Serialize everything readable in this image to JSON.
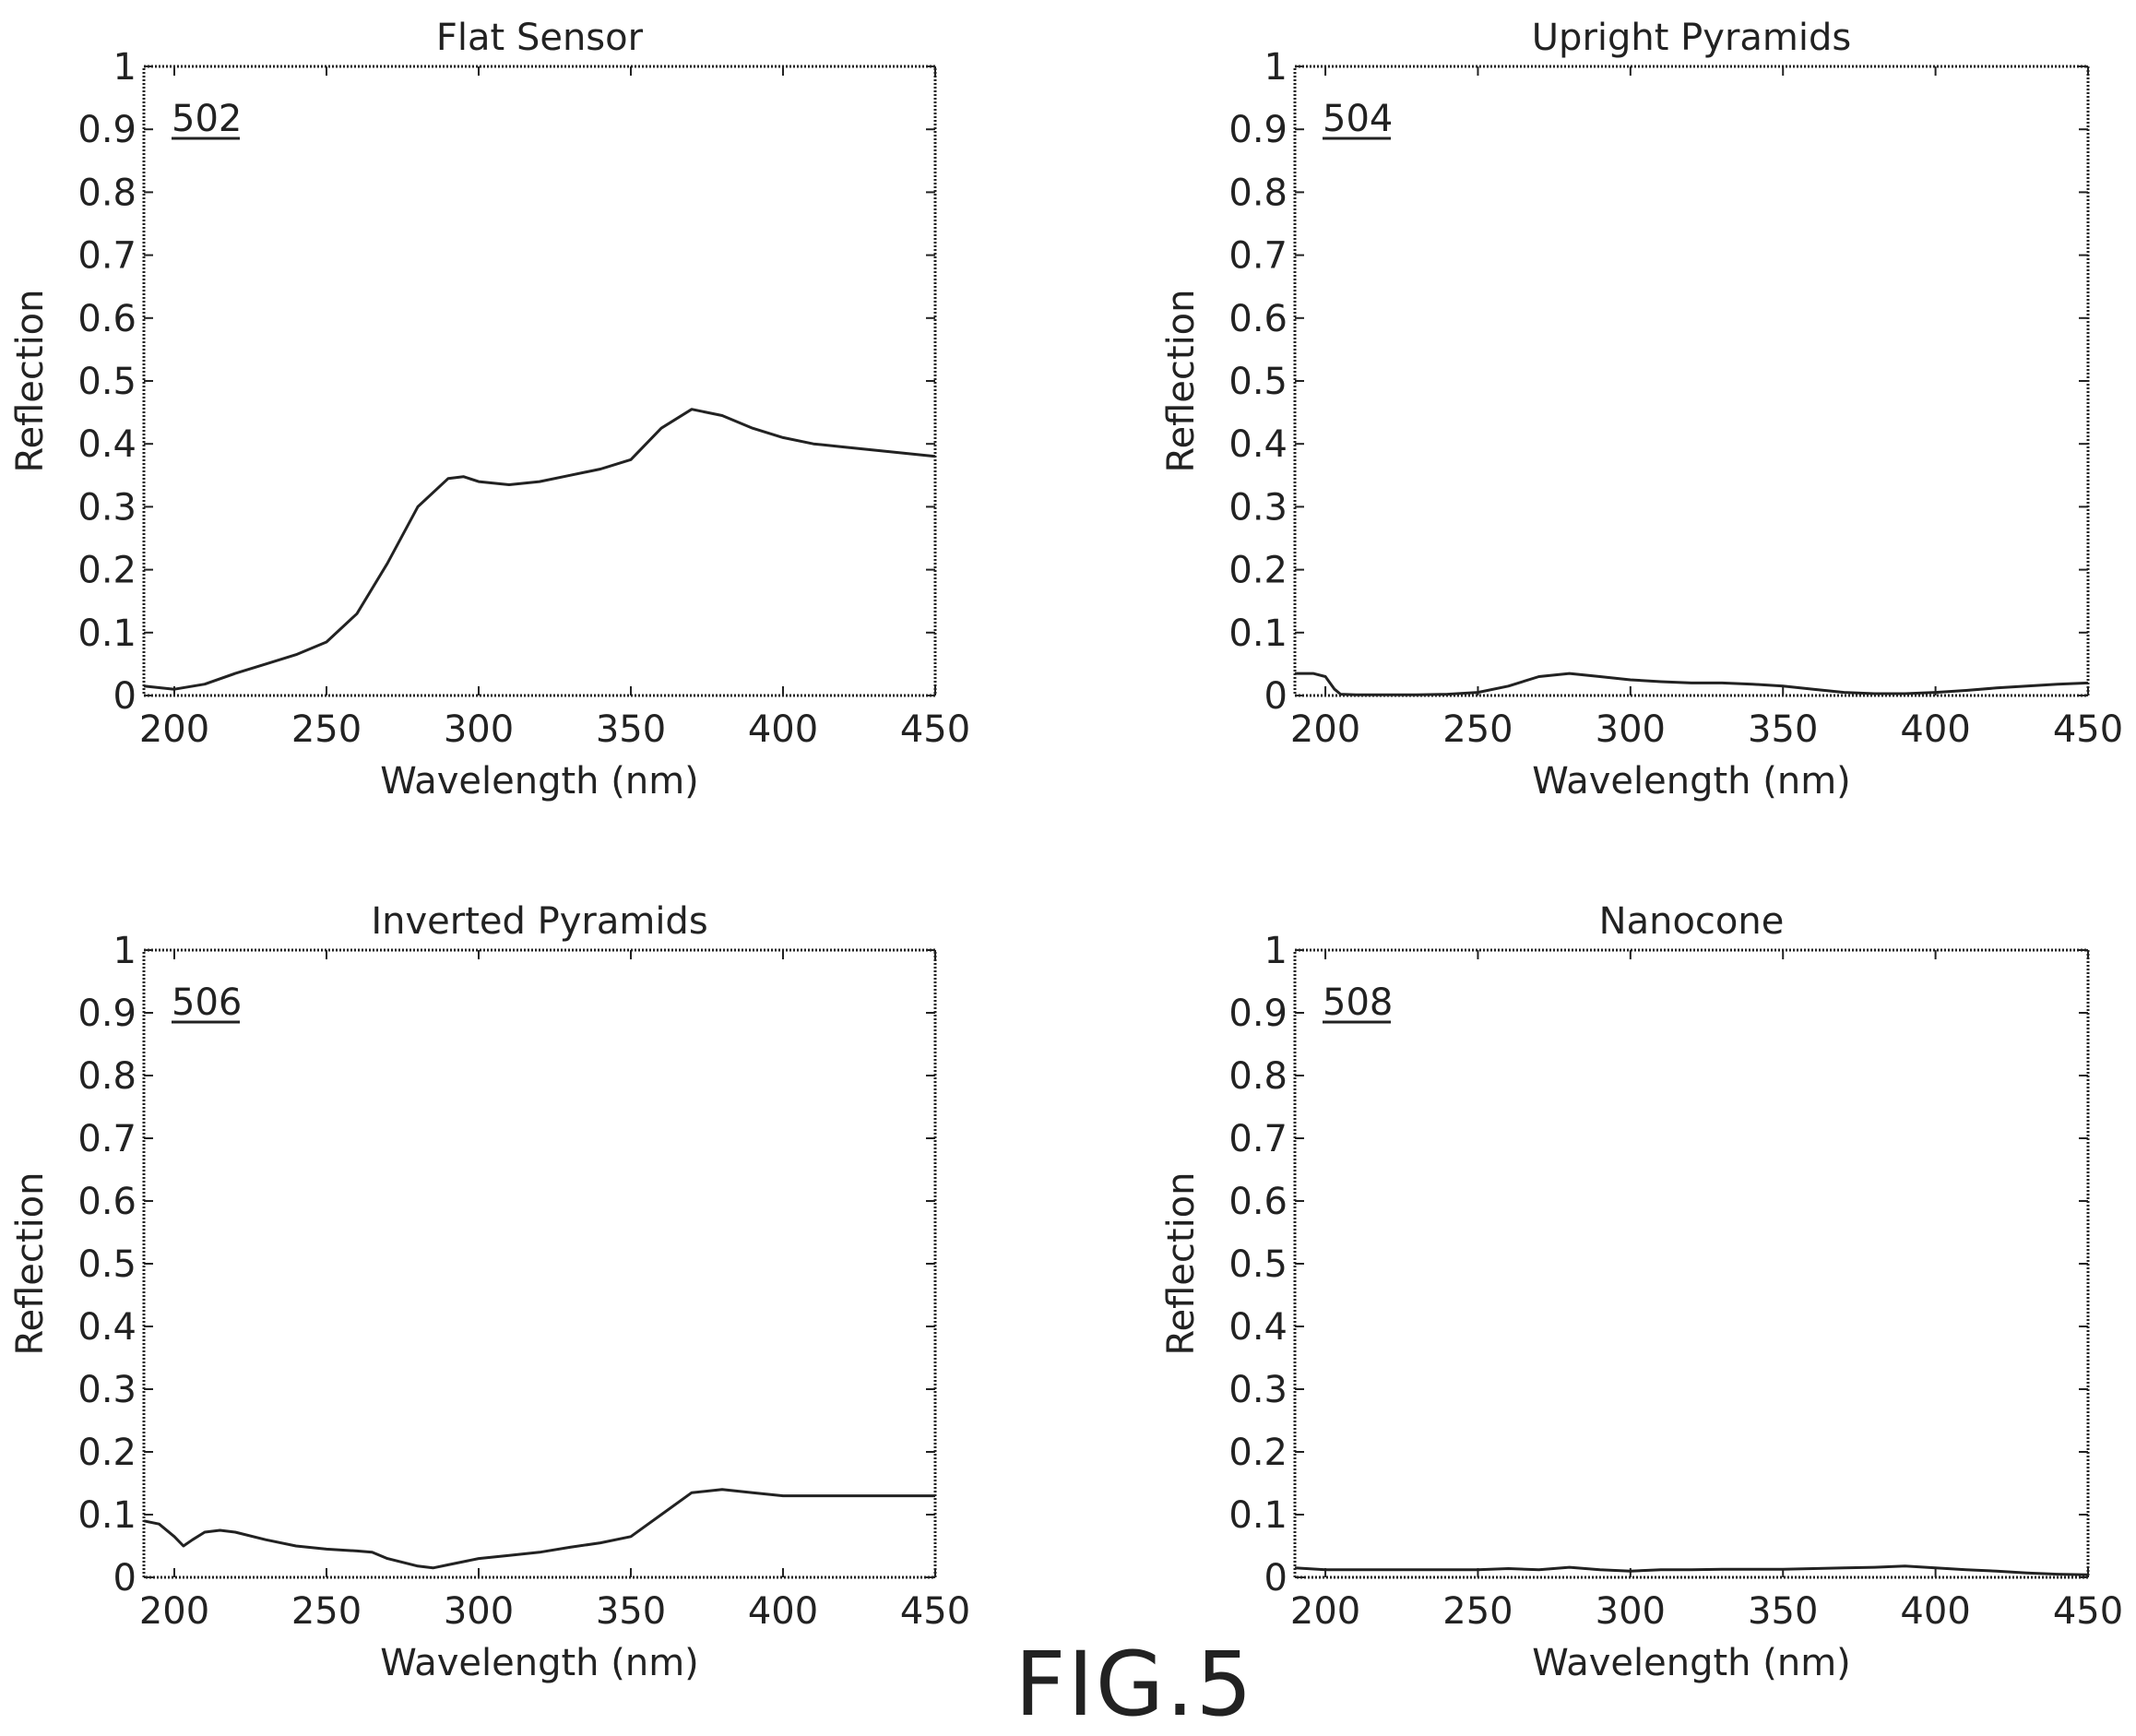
{
  "figure": {
    "label": "FIG.5"
  },
  "chart_data": [
    {
      "type": "line",
      "title": "Flat Sensor",
      "ref_label": "502",
      "xlabel": "Wavelength (nm)",
      "ylabel": "Reflection",
      "xlim": [
        190,
        450
      ],
      "ylim": [
        0,
        1
      ],
      "xticks": [
        200,
        250,
        300,
        350,
        400,
        450
      ],
      "yticks": [
        0,
        0.1,
        0.2,
        0.3,
        0.4,
        0.5,
        0.6,
        0.7,
        0.8,
        0.9,
        1
      ],
      "ytick_labels": [
        "0",
        "0.1",
        "0.2",
        "0.3",
        "0.4",
        "0.5",
        "0.6",
        "0.7",
        "0.8",
        "0.9",
        "1"
      ],
      "grid": false,
      "series": [
        {
          "x": [
            190,
            200,
            210,
            220,
            230,
            240,
            250,
            260,
            270,
            280,
            290,
            295,
            300,
            310,
            320,
            330,
            340,
            350,
            360,
            370,
            380,
            390,
            400,
            410,
            420,
            430,
            440,
            450
          ],
          "values": [
            0.015,
            0.01,
            0.018,
            0.035,
            0.05,
            0.065,
            0.085,
            0.13,
            0.21,
            0.3,
            0.345,
            0.348,
            0.34,
            0.335,
            0.34,
            0.35,
            0.36,
            0.375,
            0.425,
            0.455,
            0.445,
            0.425,
            0.41,
            0.4,
            0.395,
            0.39,
            0.385,
            0.38
          ]
        }
      ]
    },
    {
      "type": "line",
      "title": "Upright Pyramids",
      "ref_label": "504",
      "xlabel": "Wavelength (nm)",
      "ylabel": "Reflection",
      "xlim": [
        190,
        450
      ],
      "ylim": [
        0,
        1
      ],
      "xticks": [
        200,
        250,
        300,
        350,
        400,
        450
      ],
      "yticks": [
        0,
        0.1,
        0.2,
        0.3,
        0.4,
        0.5,
        0.6,
        0.7,
        0.8,
        0.9,
        1
      ],
      "ytick_labels": [
        "0",
        "0.1",
        "0.2",
        "0.3",
        "0.4",
        "0.5",
        "0.6",
        "0.7",
        "0.8",
        "0.9",
        "1"
      ],
      "grid": false,
      "series": [
        {
          "x": [
            190,
            196,
            200,
            203,
            205,
            210,
            220,
            230,
            240,
            250,
            260,
            270,
            280,
            290,
            300,
            310,
            320,
            330,
            340,
            350,
            360,
            370,
            380,
            390,
            400,
            410,
            420,
            430,
            440,
            450
          ],
          "values": [
            0.035,
            0.035,
            0.03,
            0.01,
            0.002,
            0.001,
            0.001,
            0.001,
            0.002,
            0.005,
            0.015,
            0.03,
            0.035,
            0.03,
            0.025,
            0.022,
            0.02,
            0.02,
            0.018,
            0.015,
            0.01,
            0.005,
            0.003,
            0.003,
            0.005,
            0.008,
            0.012,
            0.015,
            0.018,
            0.02
          ]
        }
      ]
    },
    {
      "type": "line",
      "title": "Inverted Pyramids",
      "ref_label": "506",
      "xlabel": "Wavelength (nm)",
      "ylabel": "Reflection",
      "xlim": [
        190,
        450
      ],
      "ylim": [
        0,
        1
      ],
      "xticks": [
        200,
        250,
        300,
        350,
        400,
        450
      ],
      "yticks": [
        0,
        0.1,
        0.2,
        0.3,
        0.4,
        0.5,
        0.6,
        0.7,
        0.8,
        0.9,
        1
      ],
      "ytick_labels": [
        "0",
        "0.1",
        "0.2",
        "0.3",
        "0.4",
        "0.5",
        "0.6",
        "0.7",
        "0.8",
        "0.9",
        "1"
      ],
      "grid": false,
      "series": [
        {
          "x": [
            190,
            195,
            200,
            203,
            206,
            210,
            215,
            220,
            230,
            240,
            250,
            260,
            265,
            270,
            280,
            285,
            290,
            300,
            310,
            320,
            330,
            340,
            350,
            360,
            370,
            380,
            390,
            400,
            410,
            420,
            430,
            440,
            450
          ],
          "values": [
            0.09,
            0.085,
            0.065,
            0.05,
            0.06,
            0.072,
            0.075,
            0.072,
            0.06,
            0.05,
            0.045,
            0.042,
            0.04,
            0.03,
            0.018,
            0.015,
            0.02,
            0.03,
            0.035,
            0.04,
            0.048,
            0.055,
            0.065,
            0.1,
            0.135,
            0.14,
            0.135,
            0.13,
            0.13,
            0.13,
            0.13,
            0.13,
            0.13
          ]
        }
      ]
    },
    {
      "type": "line",
      "title": "Nanocone",
      "ref_label": "508",
      "xlabel": "Wavelength (nm)",
      "ylabel": "Reflection",
      "xlim": [
        190,
        450
      ],
      "ylim": [
        0,
        1
      ],
      "xticks": [
        200,
        250,
        300,
        350,
        400,
        450
      ],
      "yticks": [
        0,
        0.1,
        0.2,
        0.3,
        0.4,
        0.5,
        0.6,
        0.7,
        0.8,
        0.9,
        1
      ],
      "ytick_labels": [
        "0",
        "0.1",
        "0.2",
        "0.3",
        "0.4",
        "0.5",
        "0.6",
        "0.7",
        "0.8",
        "0.9",
        "1"
      ],
      "grid": false,
      "series": [
        {
          "x": [
            190,
            200,
            210,
            220,
            230,
            240,
            250,
            260,
            270,
            280,
            290,
            300,
            310,
            320,
            330,
            340,
            350,
            360,
            370,
            380,
            390,
            400,
            410,
            420,
            430,
            440,
            450
          ],
          "values": [
            0.015,
            0.012,
            0.012,
            0.012,
            0.012,
            0.012,
            0.012,
            0.014,
            0.012,
            0.016,
            0.012,
            0.01,
            0.012,
            0.012,
            0.013,
            0.013,
            0.013,
            0.014,
            0.015,
            0.016,
            0.018,
            0.015,
            0.012,
            0.01,
            0.007,
            0.005,
            0.004
          ]
        }
      ]
    }
  ]
}
